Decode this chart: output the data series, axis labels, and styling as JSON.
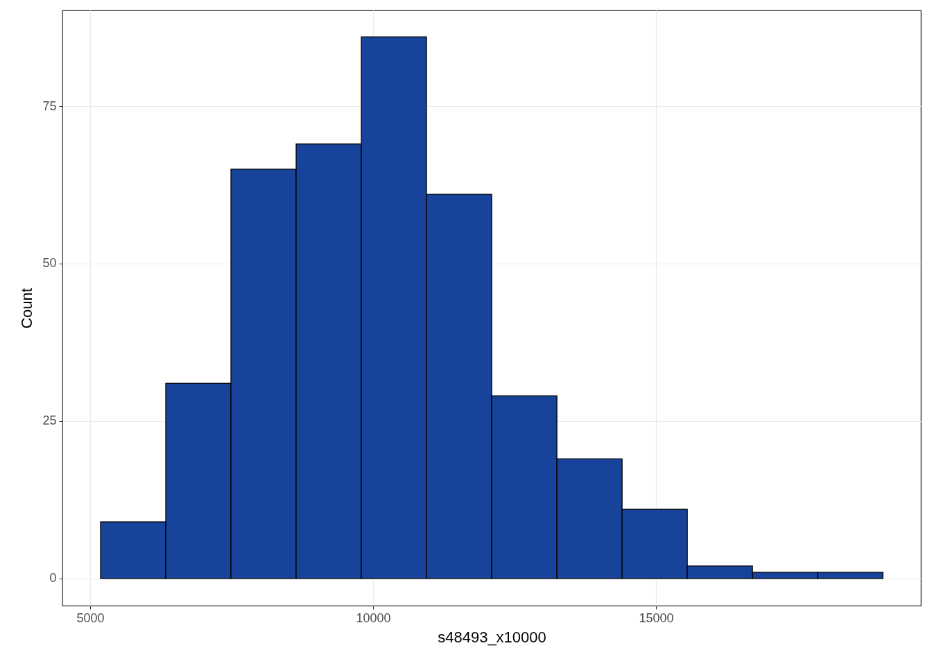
{
  "chart_data": {
    "type": "histogram",
    "xlabel": "s48493_x10000",
    "ylabel": "Count",
    "bins": [
      5184,
      6336,
      7488,
      8640,
      9792,
      10944,
      12096,
      13248,
      14400,
      15552,
      16704,
      17856,
      19008
    ],
    "values": [
      9,
      31,
      65,
      69,
      86,
      61,
      29,
      19,
      11,
      2,
      1,
      1
    ],
    "color": "#17449a",
    "xlim": [
      4510,
      19680
    ],
    "ylim": [
      -4.3,
      90.2
    ],
    "xticks": [
      5000,
      10000,
      15000
    ],
    "yticks": [
      0,
      25,
      50,
      75
    ],
    "grid": true
  }
}
